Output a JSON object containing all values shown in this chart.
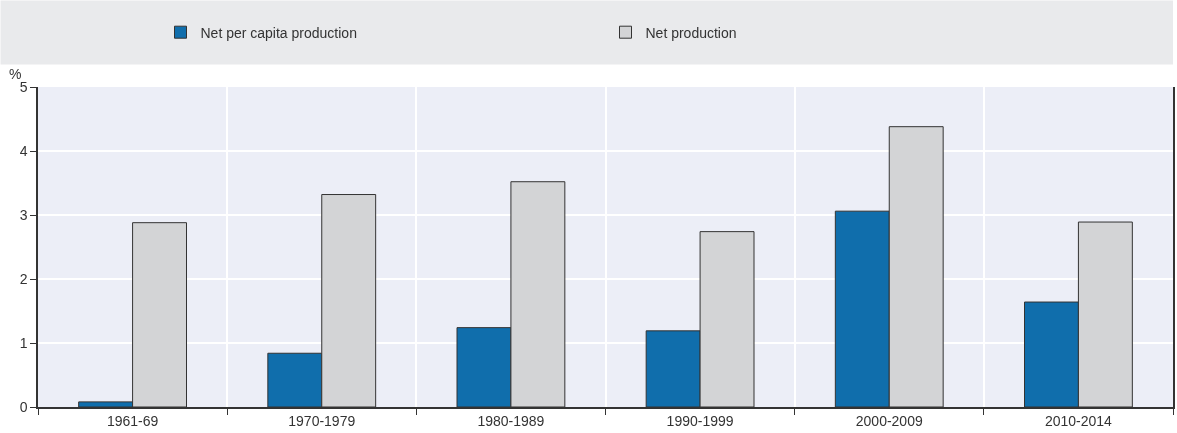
{
  "chart_data": {
    "type": "bar",
    "ylabel": "%",
    "categories": [
      "1961-69",
      "1970-1979",
      "1980-1989",
      "1990-1999",
      "2000-2009",
      "2010-2014"
    ],
    "series": [
      {
        "name": "Net per capita production",
        "color": "#106eac",
        "values": [
          0.08,
          0.84,
          1.24,
          1.19,
          3.06,
          1.64
        ]
      },
      {
        "name": "Net production",
        "color": "#d3d4d6",
        "values": [
          2.88,
          3.32,
          3.52,
          2.74,
          4.38,
          2.89
        ]
      }
    ],
    "ylim": [
      0,
      5
    ],
    "yticks": [
      0,
      1,
      2,
      3,
      4,
      5
    ],
    "grid": true,
    "legend": "top"
  }
}
